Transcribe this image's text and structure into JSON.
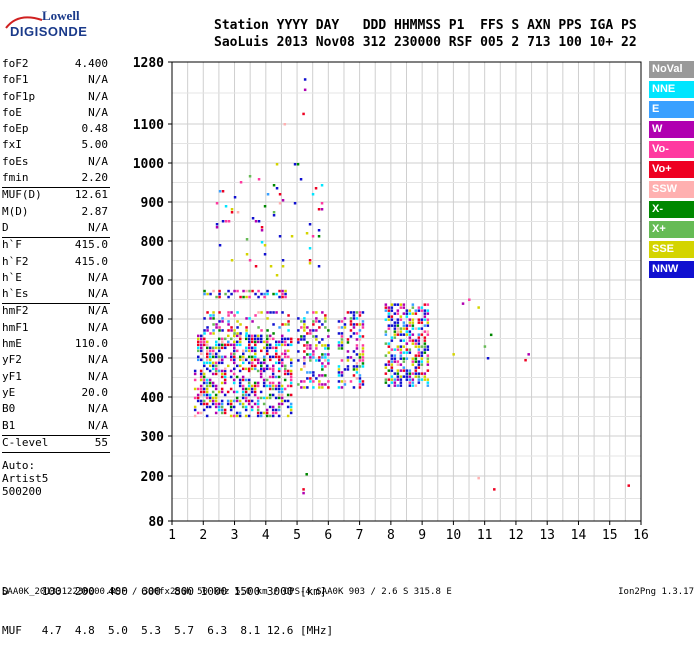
{
  "logo": {
    "line1": "Lowell",
    "line2": "DIGISONDE"
  },
  "header": {
    "line1": "Station YYYY DAY   DDD HHMMSS P1  FFS S AXN PPS IGA PS",
    "line2": "SaoLuis 2013 Nov08 312 230000 RSF 005 2 713 100 10+ 22"
  },
  "params": [
    [
      [
        "foF2",
        "4.400"
      ],
      [
        "foF1",
        "N/A"
      ],
      [
        "foF1p",
        "N/A"
      ],
      [
        "foE",
        "N/A"
      ],
      [
        "foEp",
        "0.48"
      ],
      [
        "fxI",
        "5.00"
      ],
      [
        "foEs",
        "N/A"
      ],
      [
        "fmin",
        "2.20"
      ]
    ],
    [
      [
        "MUF(D)",
        "12.61"
      ],
      [
        "M(D)",
        "2.87"
      ],
      [
        "D",
        "N/A"
      ]
    ],
    [
      [
        "h`F",
        "415.0"
      ],
      [
        "h`F2",
        "415.0"
      ],
      [
        "h`E",
        "N/A"
      ],
      [
        "h`Es",
        "N/A"
      ]
    ],
    [
      [
        "hmF2",
        "N/A"
      ],
      [
        "hmF1",
        "N/A"
      ],
      [
        "hmE",
        "110.0"
      ],
      [
        "yF2",
        "N/A"
      ],
      [
        "yF1",
        "N/A"
      ],
      [
        "yE",
        "20.0"
      ],
      [
        "B0",
        "N/A"
      ],
      [
        "B1",
        "N/A"
      ]
    ],
    [
      [
        "C-level",
        "55"
      ]
    ]
  ],
  "auto": {
    "label": "Auto:",
    "artist": "Artist5",
    "version": "500200"
  },
  "legend": [
    {
      "name": "NoVal",
      "color": "#999999"
    },
    {
      "name": "NNE",
      "color": "#00e5ff"
    },
    {
      "name": "E",
      "color": "#3aa0ff"
    },
    {
      "name": "W",
      "color": "#b000b0"
    },
    {
      "name": "Vo-",
      "color": "#ff3aa0"
    },
    {
      "name": "Vo+",
      "color": "#ee0022"
    },
    {
      "name": "SSW",
      "color": "#ffb0b0"
    },
    {
      "name": "X-",
      "color": "#008800"
    },
    {
      "name": "X+",
      "color": "#66bb55"
    },
    {
      "name": "SSE",
      "color": "#d4d400"
    },
    {
      "name": "NNW",
      "color": "#1010d0"
    }
  ],
  "distance_table": {
    "row1": "D     100  200  400  600  800 1000 1500 3000 [km]",
    "row2": "MUF   4.7  4.8  5.0  5.3  5.7  6.3  8.1 12.6 [MHz]"
  },
  "footer": {
    "left": "SAA0K_2013312230000.RSF / 300fx256h 50 kHz 5.0 km / DPS-4 SAA0K 903 / 2.6 S 315.8 E",
    "right": "Ion2Png 1.3.17"
  },
  "chart_data": {
    "type": "scatter",
    "xlabel": "",
    "ylabel": "",
    "xlim": [
      1,
      16
    ],
    "ylim": [
      80,
      1280
    ],
    "x_ticks": [
      1,
      2,
      3,
      4,
      5,
      6,
      7,
      8,
      9,
      10,
      11,
      12,
      13,
      14,
      15,
      16
    ],
    "y_ticks": [
      80,
      200,
      300,
      400,
      500,
      600,
      700,
      800,
      900,
      1000,
      1100,
      1280
    ],
    "grid": true,
    "grid_minor_x": 0.5,
    "scale_y": "nonlinear-virtual-height",
    "clusters": [
      {
        "xr": [
          1.7,
          4.8
        ],
        "yr": [
          350,
          470
        ],
        "density": 0.55
      },
      {
        "xr": [
          1.8,
          4.8
        ],
        "yr": [
          470,
          560
        ],
        "density": 0.6
      },
      {
        "xr": [
          2.0,
          4.7
        ],
        "yr": [
          560,
          620
        ],
        "density": 0.3
      },
      {
        "xr": [
          2.0,
          4.6
        ],
        "yr": [
          655,
          675
        ],
        "density": 0.5
      },
      {
        "xr": [
          5.0,
          6.0
        ],
        "yr": [
          420,
          620
        ],
        "density": 0.4
      },
      {
        "xr": [
          6.3,
          7.1
        ],
        "yr": [
          420,
          620
        ],
        "density": 0.45
      },
      {
        "xr": [
          7.8,
          9.2
        ],
        "yr": [
          430,
          640
        ],
        "density": 0.55
      },
      {
        "xr": [
          2.4,
          5.8
        ],
        "yr": [
          700,
          1000
        ],
        "density": 0.04
      }
    ],
    "sparse_points": [
      {
        "x": 10.3,
        "y": 640,
        "c": "#b000b0"
      },
      {
        "x": 10.5,
        "y": 650,
        "c": "#ff3aa0"
      },
      {
        "x": 10.8,
        "y": 630,
        "c": "#d4d400"
      },
      {
        "x": 11.2,
        "y": 560,
        "c": "#008800"
      },
      {
        "x": 11.1,
        "y": 500,
        "c": "#1010d0"
      },
      {
        "x": 10.0,
        "y": 510,
        "c": "#d4d400"
      },
      {
        "x": 12.4,
        "y": 510,
        "c": "#b000b0"
      },
      {
        "x": 12.3,
        "y": 495,
        "c": "#ee0022"
      },
      {
        "x": 11.0,
        "y": 530,
        "c": "#66bb55"
      },
      {
        "x": 11.3,
        "y": 165,
        "c": "#ee0022"
      },
      {
        "x": 15.6,
        "y": 175,
        "c": "#ee0022"
      },
      {
        "x": 10.8,
        "y": 195,
        "c": "#ffb0b0"
      },
      {
        "x": 5.2,
        "y": 165,
        "c": "#ee0022"
      },
      {
        "x": 5.2,
        "y": 155,
        "c": "#b000b0"
      },
      {
        "x": 5.3,
        "y": 205,
        "c": "#008800"
      },
      {
        "x": 5.25,
        "y": 1230,
        "c": "#1010d0"
      },
      {
        "x": 5.25,
        "y": 1200,
        "c": "#b000b0"
      },
      {
        "x": 5.2,
        "y": 1130,
        "c": "#ee0022"
      },
      {
        "x": 4.6,
        "y": 1100,
        "c": "#ffb0b0"
      }
    ]
  }
}
